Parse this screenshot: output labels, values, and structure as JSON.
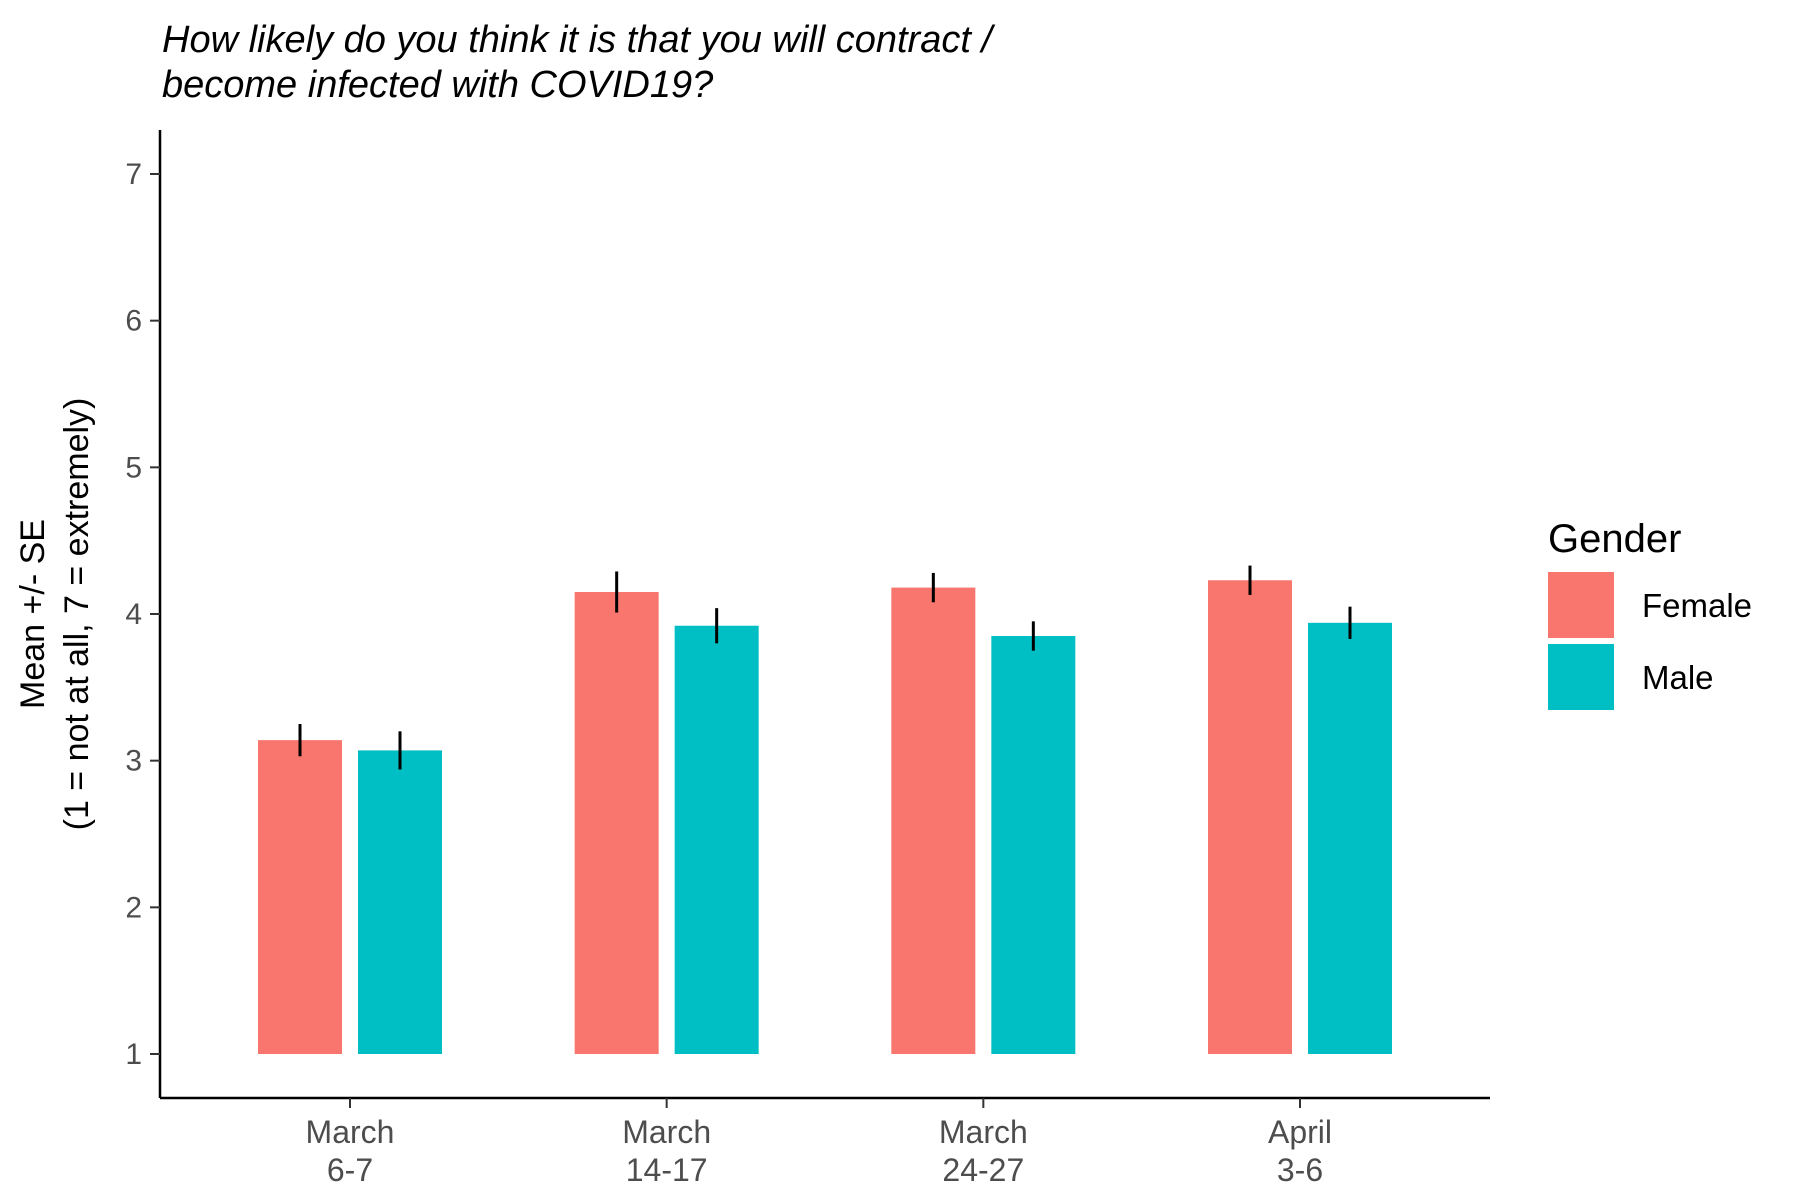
{
  "chart_data": {
    "type": "bar",
    "title_lines": [
      "How likely do you think it is that you will contract /",
      "become infected with COVID19?"
    ],
    "ylabel_lines": [
      "Mean +/- SE",
      "(1 = not at all, 7 = extremely)"
    ],
    "xlabel": "",
    "categories": [
      [
        "March",
        "6-7"
      ],
      [
        "March",
        "14-17"
      ],
      [
        "March",
        "24-27"
      ],
      [
        "April",
        "3-6"
      ]
    ],
    "series": [
      {
        "name": "Female",
        "color": "#F8766D",
        "values": [
          3.14,
          4.15,
          4.18,
          4.23
        ],
        "se": [
          0.11,
          0.14,
          0.1,
          0.1
        ]
      },
      {
        "name": "Male",
        "color": "#00BFC4",
        "values": [
          3.07,
          3.92,
          3.85,
          3.94
        ],
        "se": [
          0.13,
          0.12,
          0.1,
          0.11
        ]
      }
    ],
    "ylim": [
      0.7,
      7.3
    ],
    "bar_baseline": 1,
    "yticks": [
      1,
      2,
      3,
      4,
      5,
      6,
      7
    ],
    "grid": false,
    "legend": {
      "title": "Gender",
      "placement": "right"
    }
  }
}
